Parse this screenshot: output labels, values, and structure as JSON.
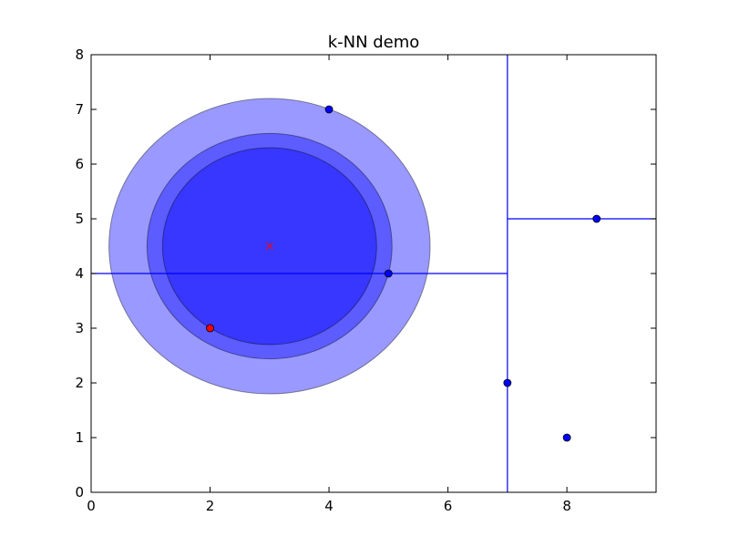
{
  "chart_data": {
    "type": "scatter",
    "title": "k-NN demo",
    "xlabel": "",
    "ylabel": "",
    "xlim": [
      0,
      9.5
    ],
    "ylim": [
      0,
      8
    ],
    "x_ticks": [
      0,
      2,
      4,
      6,
      8
    ],
    "y_ticks": [
      0,
      1,
      2,
      3,
      4,
      5,
      6,
      7,
      8
    ],
    "grid": false,
    "legend": "none",
    "colors": {
      "points": "#0000ff",
      "highlight_point": "#ff0000",
      "query_marker": "#ff0000",
      "split_lines": "#0000ff",
      "circles": "#0000ff"
    },
    "points": [
      {
        "x": 4,
        "y": 7
      },
      {
        "x": 5,
        "y": 4
      },
      {
        "x": 8.5,
        "y": 5
      },
      {
        "x": 7,
        "y": 2
      },
      {
        "x": 8,
        "y": 1
      }
    ],
    "highlight_points": [
      {
        "x": 2,
        "y": 3
      }
    ],
    "query_point": {
      "x": 3,
      "y": 4.5,
      "marker": "x"
    },
    "split_lines": [
      {
        "orientation": "vertical",
        "x": 7,
        "y_from": 0,
        "y_to": 8
      },
      {
        "orientation": "horizontal",
        "y": 4,
        "x_from": 0,
        "x_to": 7
      },
      {
        "orientation": "horizontal",
        "y": 5,
        "x_from": 7,
        "x_to": 9.5
      }
    ],
    "circles": [
      {
        "cx": 3,
        "cy": 4.5,
        "r": 2.7,
        "alpha": 0.4
      },
      {
        "cx": 3,
        "cy": 4.5,
        "r": 2.06,
        "alpha": 0.4
      },
      {
        "cx": 3,
        "cy": 4.5,
        "r": 1.8,
        "alpha": 0.4
      }
    ]
  }
}
